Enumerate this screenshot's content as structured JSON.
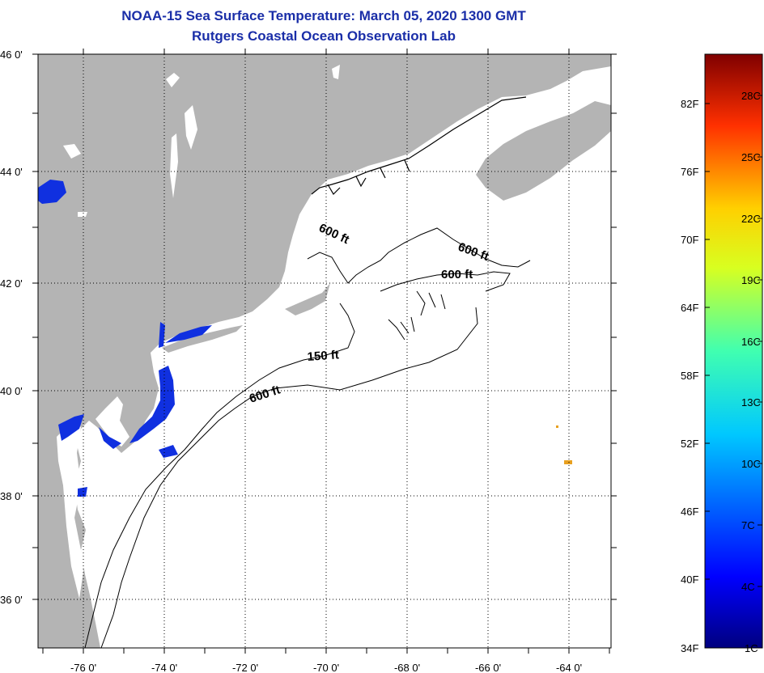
{
  "title": {
    "line1": "NOAA-15 Sea Surface Temperature:  March 05, 2020 1300 GMT",
    "line2": "Rutgers Coastal Ocean Observation Lab"
  },
  "axes": {
    "lat_labels": [
      "46 0'",
      "44 0'",
      "42 0'",
      "40 0'",
      "38 0'",
      "36 0'"
    ],
    "lon_labels": [
      "-76 0'",
      "-74 0'",
      "-72 0'",
      "-70 0'",
      "-68 0'",
      "-66 0'",
      "-64 0'"
    ]
  },
  "contour_labels": [
    "600 ft",
    "600 ft",
    "600 ft",
    "150 ft",
    "600 ft"
  ],
  "colorbar": {
    "fahrenheit": [
      "82F",
      "76F",
      "70F",
      "64F",
      "58F",
      "52F",
      "46F",
      "40F",
      "34F"
    ],
    "celsius": [
      "28C",
      "25C",
      "22C",
      "19C",
      "16C",
      "13C",
      "10C",
      "7C",
      "4C",
      "1C"
    ]
  },
  "colors": {
    "land": "#b4b4b4",
    "ocean": "#ffffff",
    "title": "#1a2ea8",
    "cold_water": "#1030e0",
    "warm_spot": "#e8a020"
  }
}
